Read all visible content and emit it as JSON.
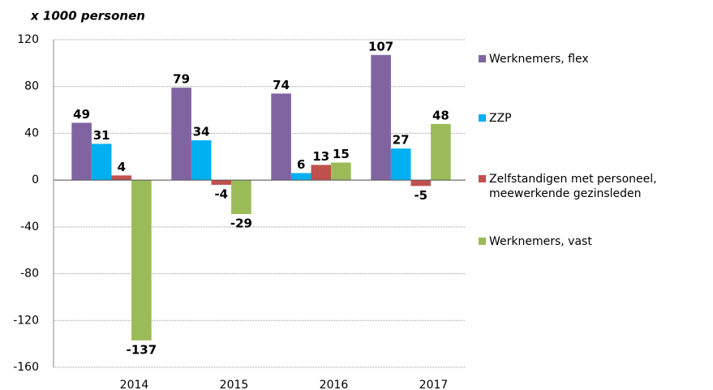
{
  "chart_data": {
    "type": "bar",
    "subtitle": "x 1000 personen",
    "categories": [
      "2014",
      "2015",
      "2016",
      "2017"
    ],
    "series": [
      {
        "name": "Werknemers, flex",
        "color": "#8064a2",
        "values": [
          49,
          79,
          74,
          107
        ]
      },
      {
        "name": "ZZP",
        "color": "#00b0f0",
        "values": [
          31,
          34,
          6,
          27
        ]
      },
      {
        "name": "Zelfstandigen met personeel, meewerkende gezinsleden",
        "color": "#c0504d",
        "values": [
          4,
          -4,
          13,
          -5
        ]
      },
      {
        "name": "Werknemers, vast",
        "color": "#9bbb59",
        "values": [
          -137,
          -29,
          15,
          48
        ]
      }
    ],
    "ylim": [
      -160,
      120
    ],
    "yticks": [
      -160,
      -120,
      -80,
      -40,
      0,
      40,
      80,
      120
    ],
    "grid": true
  }
}
